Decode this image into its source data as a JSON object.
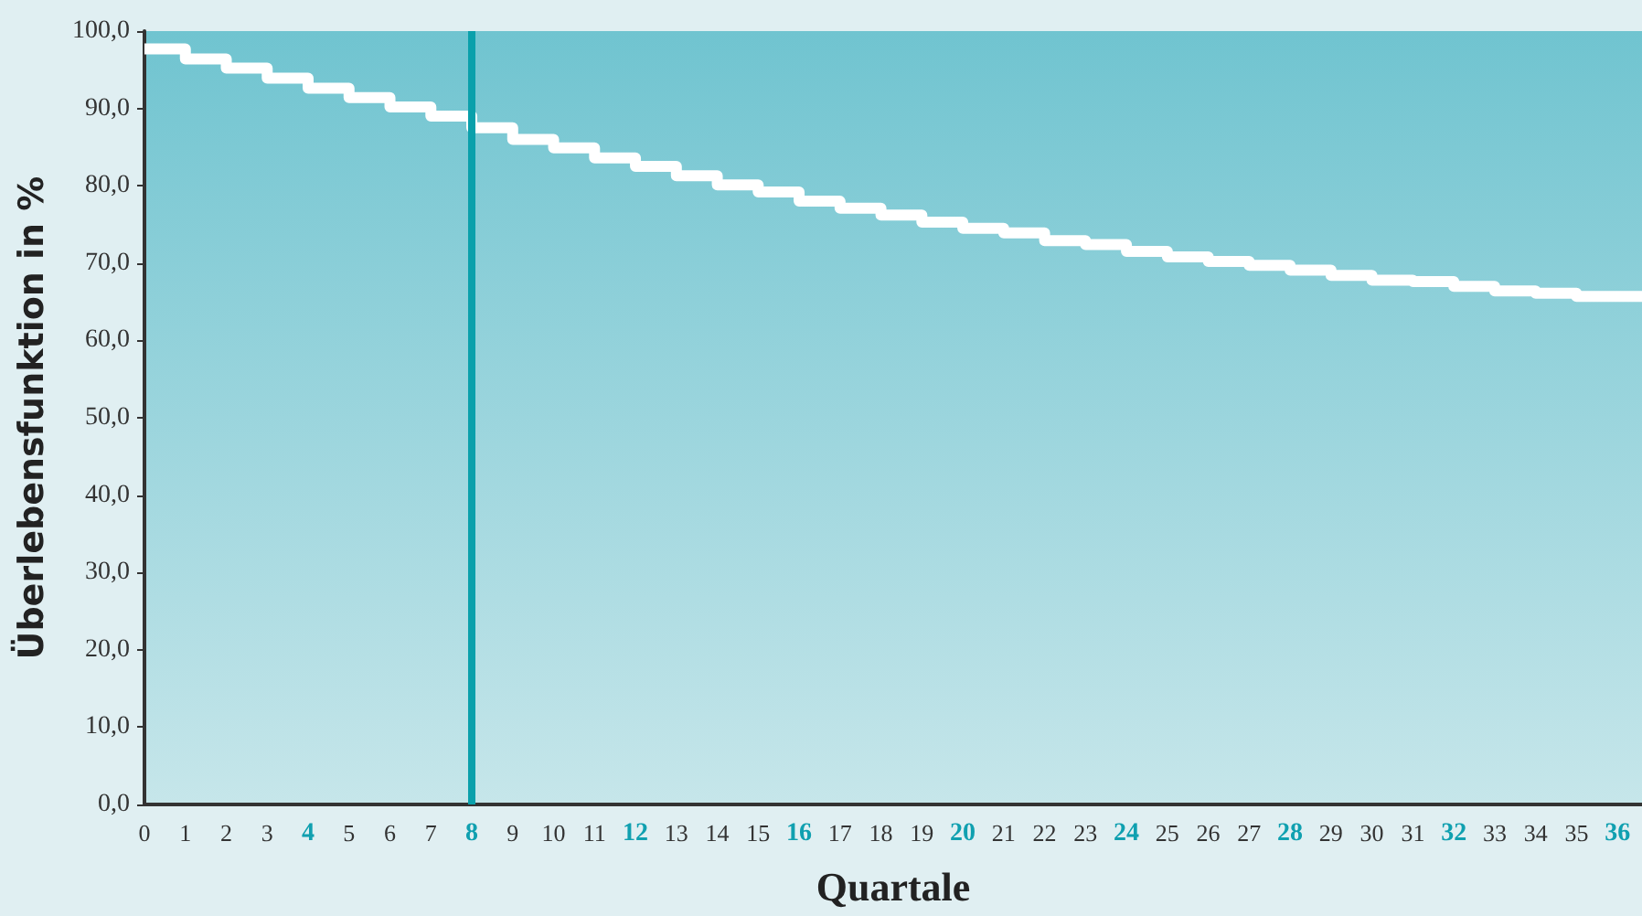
{
  "chart_data": {
    "type": "step",
    "xlabel": "Quartale",
    "ylabel": "Überlebensfunktion in %",
    "x": [
      0,
      1,
      2,
      3,
      4,
      5,
      6,
      7,
      8,
      9,
      10,
      11,
      12,
      13,
      14,
      15,
      16,
      17,
      18,
      19,
      20,
      21,
      22,
      23,
      24,
      25,
      26,
      27,
      28,
      29,
      30,
      31,
      32,
      33,
      34,
      35,
      36.6
    ],
    "series": [
      {
        "color": "#ffffff",
        "values": [
          97.7,
          96.4,
          95.2,
          93.9,
          92.6,
          91.4,
          90.2,
          89.0,
          87.5,
          86.0,
          84.9,
          83.6,
          82.5,
          81.3,
          80.1,
          79.2,
          78.0,
          77.1,
          76.2,
          75.3,
          74.5,
          73.9,
          72.9,
          72.4,
          71.5,
          70.8,
          70.2,
          69.7,
          69.1,
          68.4,
          67.8,
          67.6,
          67.0,
          66.4,
          66.1,
          65.7,
          65.7
        ]
      }
    ],
    "xlim": [
      0,
      36.6
    ],
    "xticks": [
      0,
      1,
      2,
      3,
      4,
      5,
      6,
      7,
      8,
      9,
      10,
      11,
      12,
      13,
      14,
      15,
      16,
      17,
      18,
      19,
      20,
      21,
      22,
      23,
      24,
      25,
      26,
      27,
      28,
      29,
      30,
      31,
      32,
      33,
      34,
      35,
      36
    ],
    "ylim": [
      0,
      100
    ],
    "yticks": [
      {
        "value": 0,
        "label": "0,0"
      },
      {
        "value": 10,
        "label": "10,0"
      },
      {
        "value": 20,
        "label": "20,0"
      },
      {
        "value": 30,
        "label": "30,0"
      },
      {
        "value": 40,
        "label": "40,0"
      },
      {
        "value": 50,
        "label": "50,0"
      },
      {
        "value": 60,
        "label": "60,0"
      },
      {
        "value": 70,
        "label": "70,0"
      },
      {
        "value": 80,
        "label": "80,0"
      },
      {
        "value": 90,
        "label": "90,0"
      },
      {
        "value": 100,
        "label": "100,0"
      }
    ],
    "ref_lines": [
      {
        "axis": "x",
        "value": 8,
        "color": "#0aa0ab"
      }
    ],
    "grid": false,
    "marker": "none",
    "line_style": "solid"
  }
}
